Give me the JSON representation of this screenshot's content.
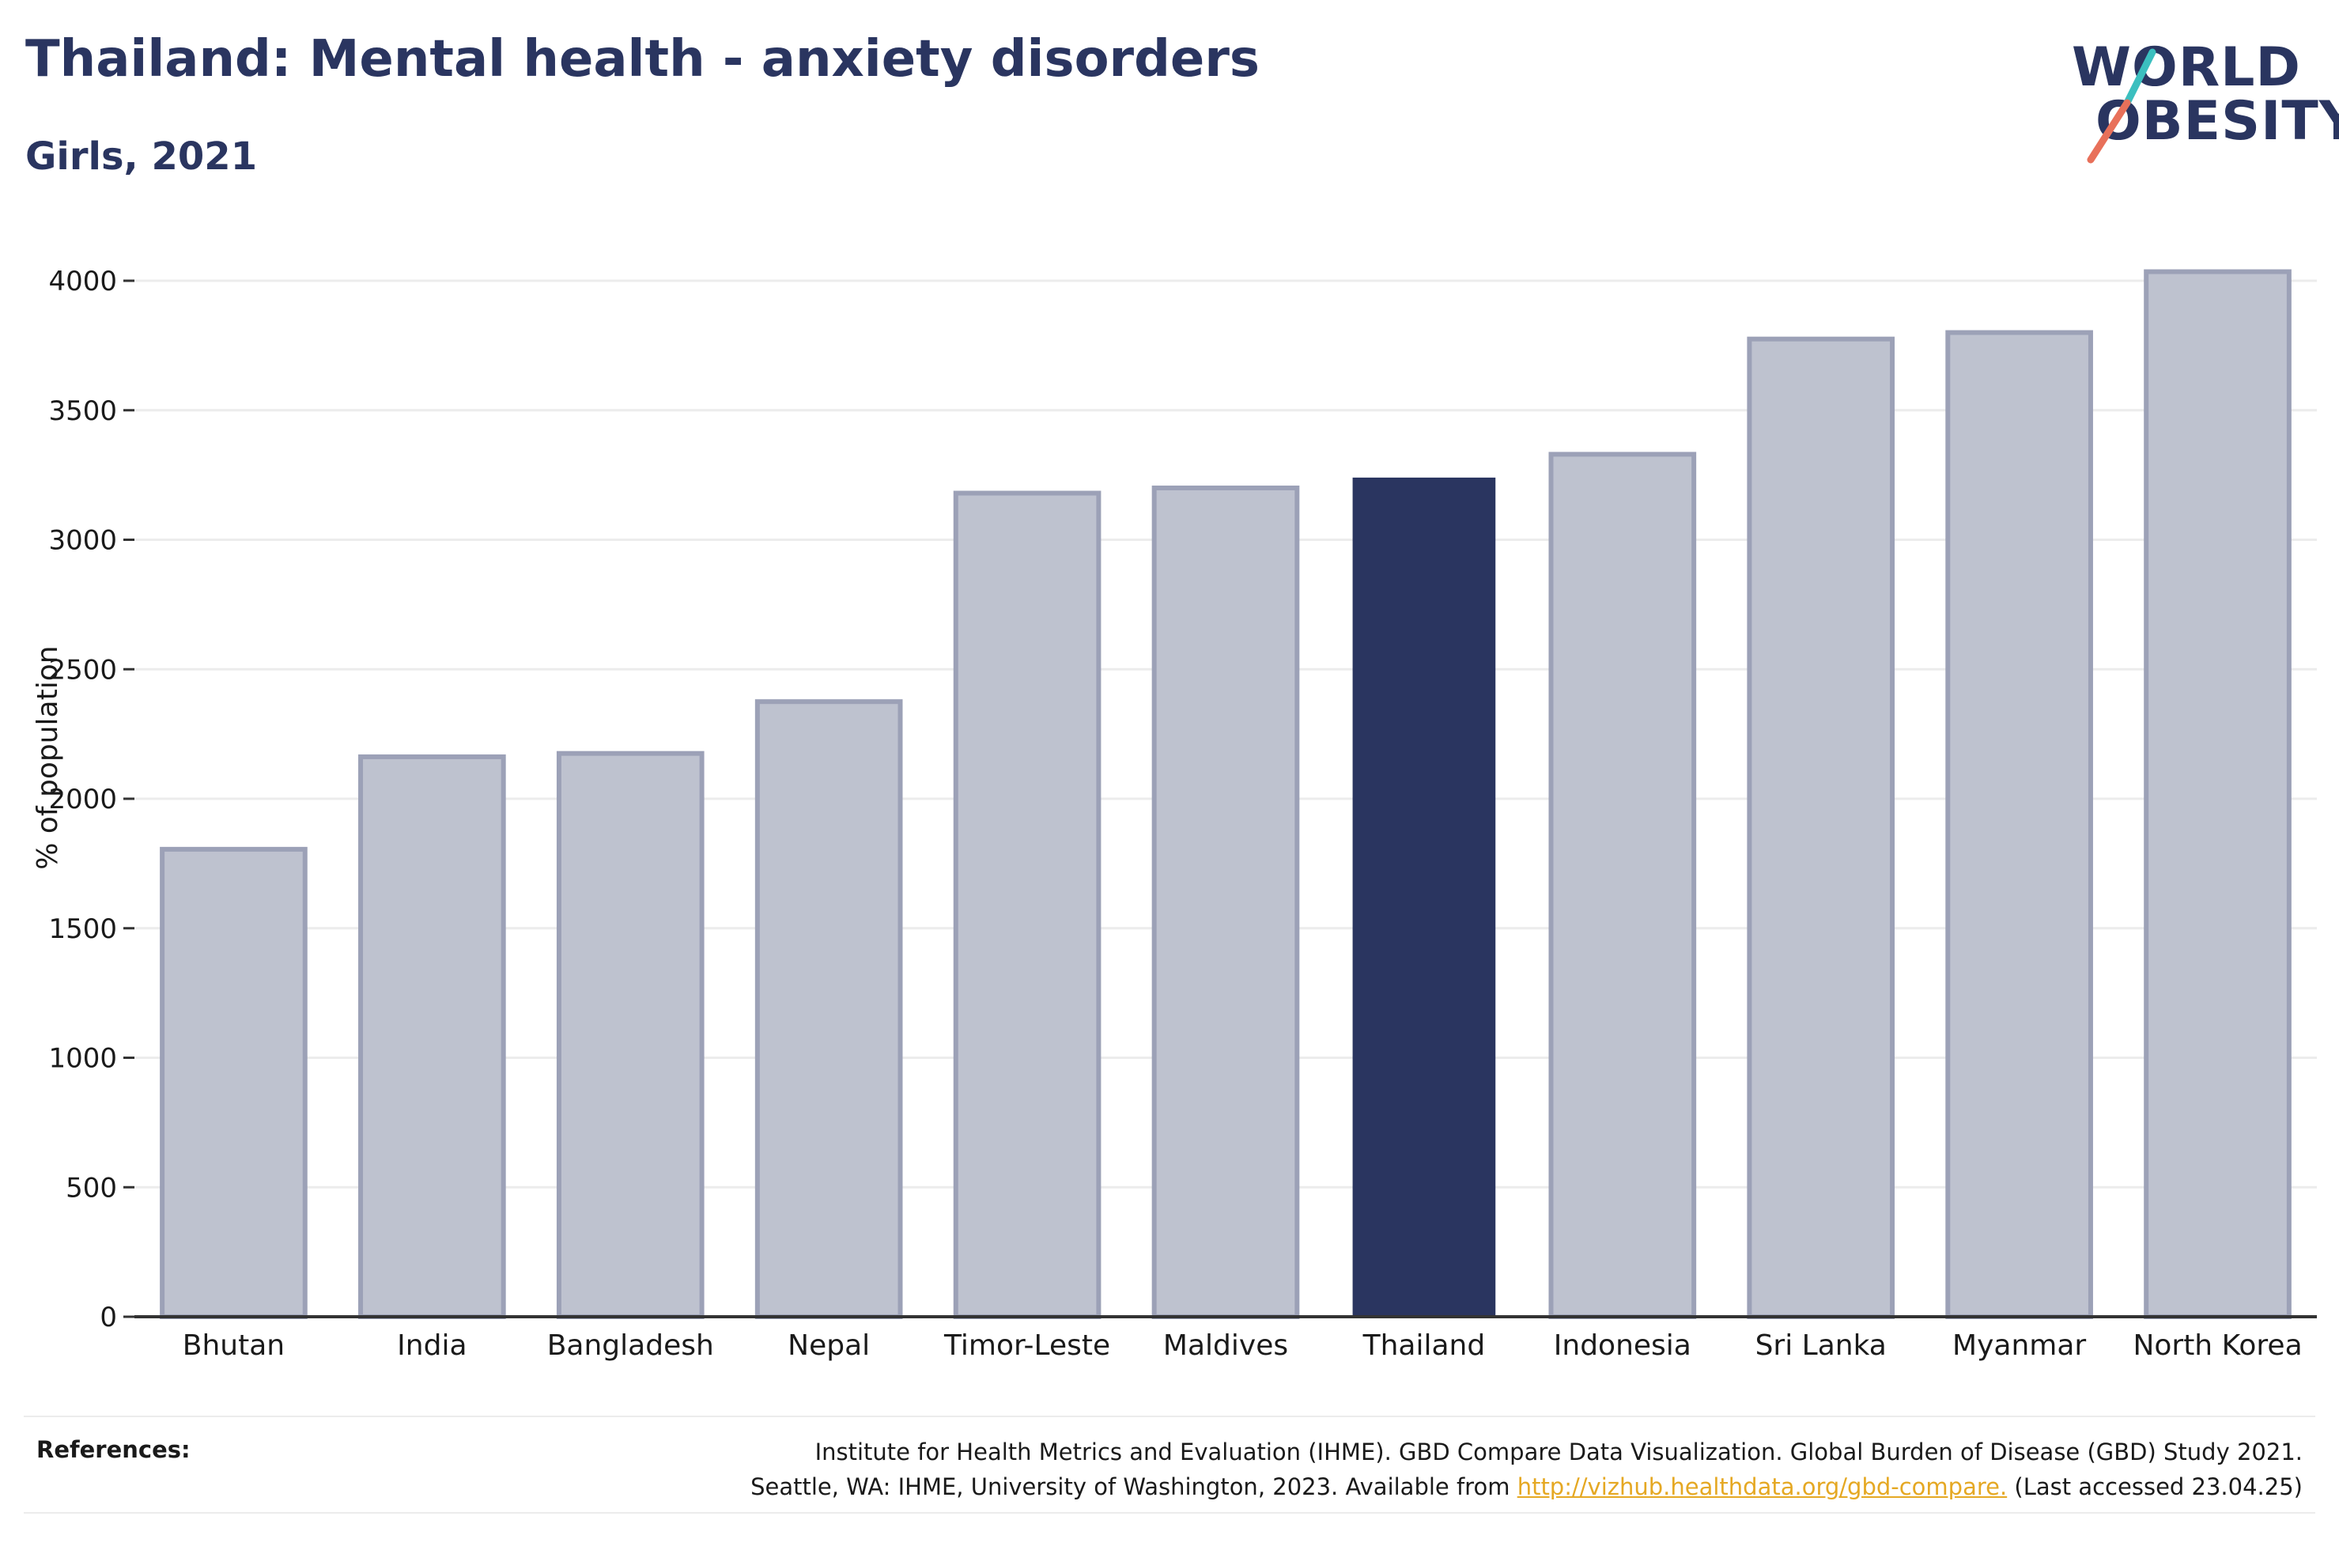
{
  "header": {
    "title": "Thailand: Mental health - anxiety disorders",
    "subtitle": "Girls, 2021"
  },
  "logo": {
    "line1": "WORLD",
    "line2": "OBESITY",
    "colors": {
      "text": "#2a3560",
      "slash_top": "#3bbfbf",
      "slash_bottom": "#e8705a"
    }
  },
  "chart_data": {
    "type": "bar",
    "ylabel": "% of population",
    "xlabel": "",
    "ylim": [
      0,
      4000
    ],
    "yticks": [
      0,
      500,
      1000,
      1500,
      2000,
      2500,
      3000,
      3500,
      4000
    ],
    "grid": true,
    "categories": [
      "Bhutan",
      "India",
      "Bangladesh",
      "Nepal",
      "Timor-Leste",
      "Maldives",
      "Thailand",
      "Indonesia",
      "Sri Lanka",
      "Myanmar",
      "North Korea"
    ],
    "values": [
      1805,
      2162,
      2175,
      2375,
      3180,
      3200,
      3240,
      3330,
      3775,
      3800,
      4035
    ],
    "highlight": "Thailand",
    "colors": {
      "highlight": "#2a3560",
      "default_fill": "#bec2cf",
      "default_stroke": "#9ca1b7",
      "grid": "#ececec",
      "axis": "#333333"
    }
  },
  "references": {
    "label": "References:",
    "line1": "Institute for Health Metrics and Evaluation (IHME). GBD Compare Data Visualization. Global Burden of Disease (GBD) Study 2021.",
    "line2_prefix": "Seattle, WA: IHME, University of Washington, 2023. Available from ",
    "link": "http://vizhub.healthdata.org/gbd-compare.",
    "line2_suffix": " (Last accessed 23.04.25)"
  }
}
